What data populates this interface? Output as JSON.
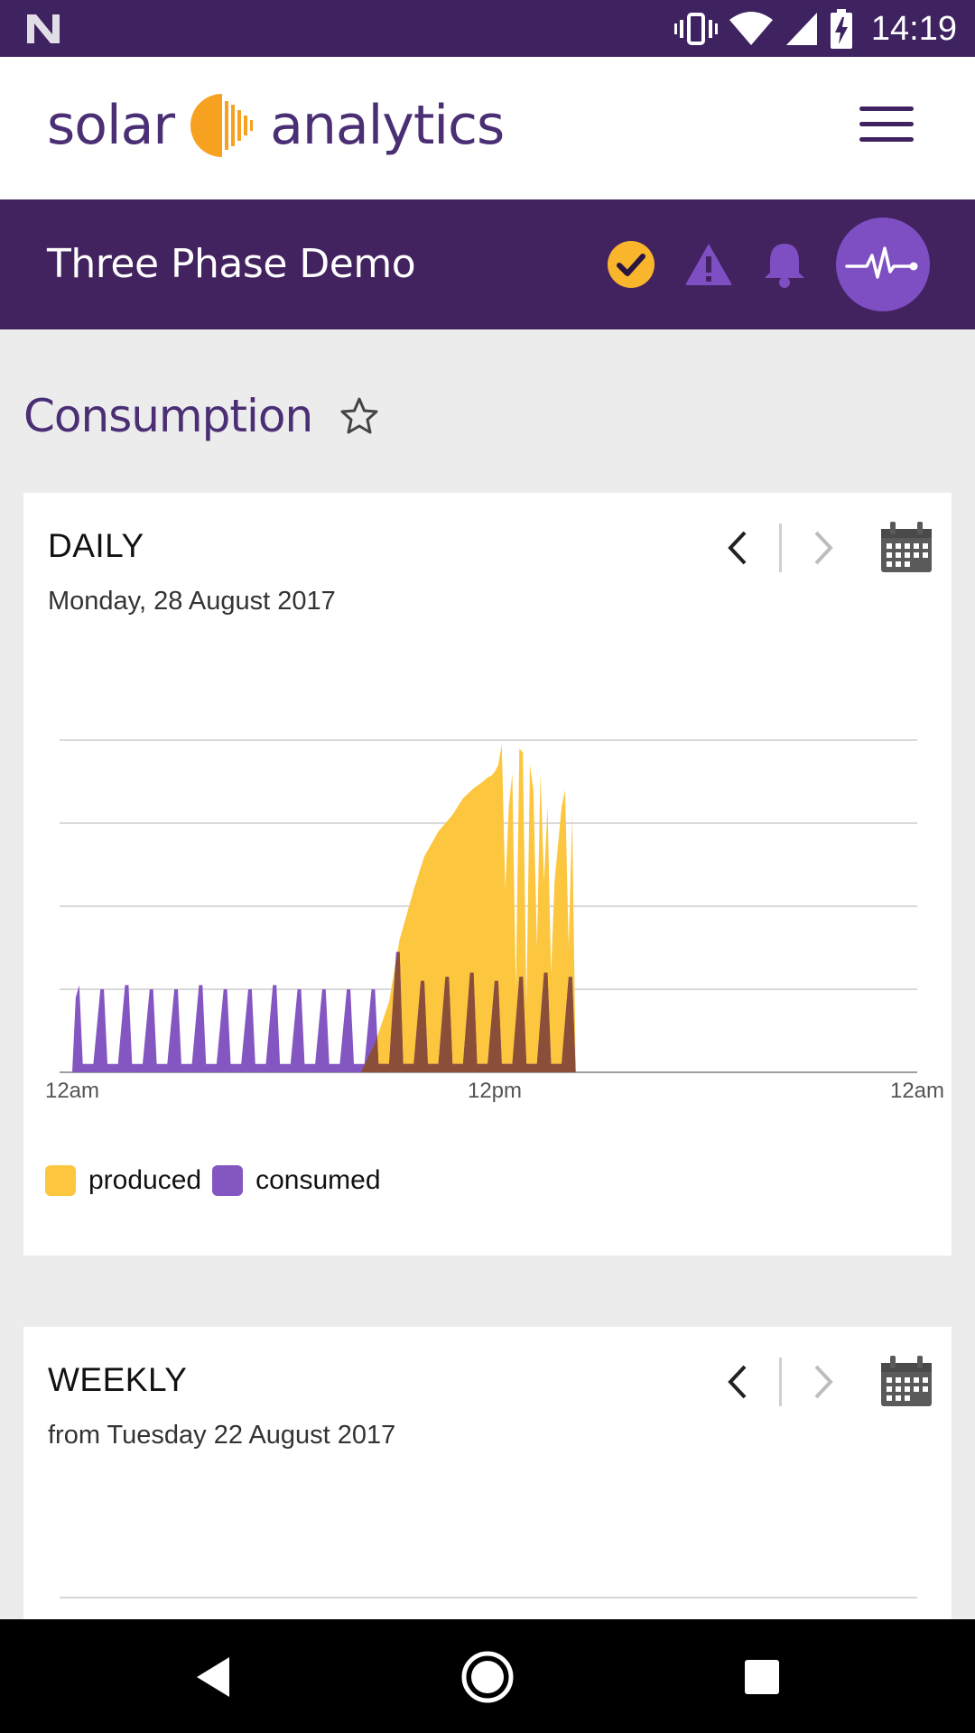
{
  "status_bar": {
    "time": "14:19",
    "icons": [
      "notification-n-icon",
      "vibrate-icon",
      "wifi-icon",
      "signal-icon",
      "battery-charging-icon"
    ]
  },
  "header": {
    "brand_left": "solar",
    "brand_right": "analytics",
    "menu_icon": "hamburger-menu-icon"
  },
  "site_bar": {
    "title": "Three Phase Demo",
    "icons": [
      "check-circle-icon",
      "warning-icon",
      "bell-icon",
      "pulse-icon"
    ],
    "colors": {
      "check": "#f9b52c",
      "warning": "#7e4fc2",
      "bell": "#7e4fc2",
      "pulse_bg": "#7e4fc2"
    }
  },
  "page": {
    "title": "Consumption"
  },
  "daily_card": {
    "title": "DAILY",
    "subtitle": "Monday, 28 August 2017"
  },
  "weekly_card": {
    "title": "WEEKLY",
    "subtitle": "from Tuesday 22 August 2017"
  },
  "chart_data": {
    "type": "area",
    "x_tick_labels": [
      "12am",
      "12pm",
      "12am"
    ],
    "xlim": [
      0,
      24
    ],
    "ylim": [
      0,
      4
    ],
    "grid": true,
    "legend_position": "bottom-left",
    "legend": [
      "produced",
      "consumed"
    ],
    "colors": {
      "produced": "#fcc73f",
      "consumed": "#8456c2",
      "overlap": "#8a4e39"
    },
    "series": [
      {
        "name": "produced",
        "x": [
          8.2,
          8.6,
          9.0,
          9.3,
          9.7,
          10.0,
          10.4,
          10.8,
          11.1,
          11.4,
          11.6,
          11.8,
          11.9,
          12.0,
          12.1,
          12.2,
          12.3,
          12.4,
          12.5,
          12.6,
          12.7,
          12.8,
          12.9,
          13.0,
          13.1,
          13.2,
          13.3,
          13.4,
          13.5,
          13.6,
          13.7,
          13.9,
          14.0,
          14.1,
          14.2,
          14.3
        ],
        "values": [
          0.0,
          0.35,
          0.85,
          1.6,
          2.2,
          2.6,
          2.9,
          3.1,
          3.3,
          3.42,
          3.48,
          3.55,
          3.57,
          3.62,
          3.7,
          3.95,
          2.2,
          3.2,
          3.6,
          1.0,
          3.9,
          3.85,
          0.8,
          3.7,
          3.4,
          1.5,
          3.6,
          2.3,
          3.2,
          1.2,
          2.3,
          3.2,
          3.4,
          1.5,
          3.1,
          0.0
        ]
      },
      {
        "name": "consumed",
        "x": [
          0.0,
          0.1,
          0.2,
          0.3,
          0.6,
          0.8,
          0.9,
          1.0,
          1.3,
          1.5,
          1.6,
          1.7,
          2.0,
          2.2,
          2.3,
          2.4,
          2.7,
          2.9,
          3.0,
          3.1,
          3.4,
          3.6,
          3.7,
          3.8,
          4.1,
          4.3,
          4.4,
          4.5,
          4.8,
          5.0,
          5.1,
          5.2,
          5.5,
          5.7,
          5.8,
          5.9,
          6.2,
          6.4,
          6.5,
          6.6,
          6.9,
          7.1,
          7.2,
          7.3,
          7.6,
          7.8,
          7.9,
          8.0,
          8.3,
          8.5,
          8.6,
          8.7,
          9.0,
          9.2,
          9.3,
          9.4,
          9.7,
          9.9,
          10.0,
          10.1,
          10.4,
          10.6,
          10.7,
          10.8,
          11.1,
          11.3,
          11.4,
          11.5,
          11.8,
          12.0,
          12.1,
          12.2,
          12.5,
          12.7,
          12.8,
          12.9,
          13.2,
          13.4,
          13.5,
          13.6,
          13.9,
          14.1,
          14.2,
          14.3
        ],
        "values": [
          0.0,
          0.9,
          1.05,
          0.1,
          0.1,
          1.0,
          1.0,
          0.1,
          0.1,
          1.05,
          1.05,
          0.1,
          0.1,
          1.0,
          1.0,
          0.1,
          0.1,
          1.0,
          1.0,
          0.1,
          0.1,
          1.05,
          1.05,
          0.1,
          0.1,
          1.0,
          1.0,
          0.1,
          0.1,
          1.0,
          1.0,
          0.1,
          0.1,
          1.05,
          1.05,
          0.1,
          0.1,
          1.0,
          1.0,
          0.1,
          0.1,
          1.0,
          1.0,
          0.1,
          0.1,
          1.0,
          1.0,
          0.1,
          0.1,
          1.0,
          1.0,
          0.1,
          0.1,
          1.45,
          1.45,
          0.1,
          0.1,
          1.1,
          1.1,
          0.1,
          0.1,
          1.15,
          1.15,
          0.1,
          0.1,
          1.2,
          1.2,
          0.1,
          0.1,
          1.1,
          1.1,
          0.1,
          0.1,
          1.15,
          1.15,
          0.1,
          0.1,
          1.2,
          1.2,
          0.1,
          0.1,
          1.15,
          1.15,
          0.0
        ]
      }
    ]
  }
}
